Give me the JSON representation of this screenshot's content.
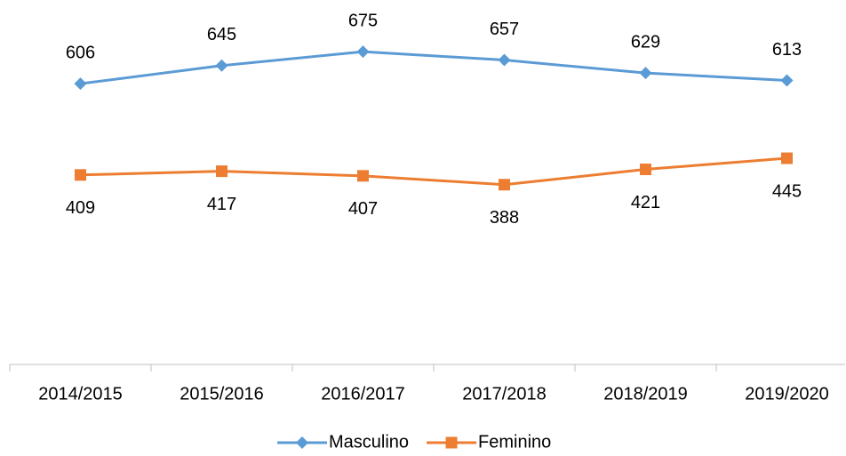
{
  "chart_data": {
    "type": "line",
    "categories": [
      "2014/2015",
      "2015/2016",
      "2016/2017",
      "2017/2018",
      "2018/2019",
      "2019/2020"
    ],
    "series": [
      {
        "name": "Masculino",
        "color": "#5b9bd5",
        "marker": "diamond",
        "values": [
          606,
          645,
          675,
          657,
          629,
          613
        ]
      },
      {
        "name": "Feminino",
        "color": "#ed7d31",
        "marker": "square",
        "values": [
          409,
          417,
          407,
          388,
          421,
          445
        ]
      }
    ],
    "ylim": [
      0,
      800
    ],
    "legend": "bottom"
  }
}
